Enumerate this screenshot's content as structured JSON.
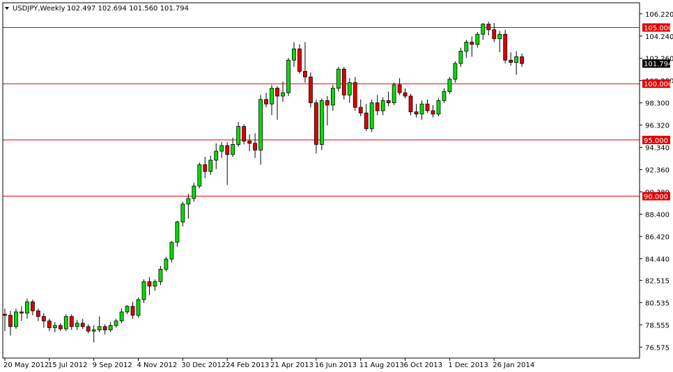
{
  "header": {
    "symbol": "USDJPY,Weekly",
    "ohlc": "102.497 102.694 101.560 101.794"
  },
  "chart_data": {
    "type": "candlestick",
    "title": "USDJPY,Weekly",
    "ylim": [
      75.6,
      107.2
    ],
    "y_ticks": [
      "106.220",
      "104.240",
      "102.260",
      "100.280",
      "98.300",
      "96.320",
      "94.340",
      "92.360",
      "90.380",
      "88.400",
      "86.420",
      "84.440",
      "82.515",
      "80.535",
      "78.555",
      "76.575"
    ],
    "x_ticks": [
      {
        "label": "20 May 2012",
        "index": 0
      },
      {
        "label": "15 Jul 2012",
        "index": 8
      },
      {
        "label": "9 Sep 2012",
        "index": 16
      },
      {
        "label": "4 Nov 2012",
        "index": 24
      },
      {
        "label": "30 Dec 2012",
        "index": 32
      },
      {
        "label": "24 Feb 2013",
        "index": 40
      },
      {
        "label": "21 Apr 2013",
        "index": 48
      },
      {
        "label": "16 Jun 2013",
        "index": 56
      },
      {
        "label": "11 Aug 2013",
        "index": 64
      },
      {
        "label": "6 Oct 2013",
        "index": 72
      },
      {
        "label": "1 Dec 2013",
        "index": 80
      },
      {
        "label": "26 Jan 2014",
        "index": 88
      }
    ],
    "levels": [
      {
        "label": "105.000",
        "value": 105.0
      },
      {
        "label": "100.000",
        "value": 100.0
      },
      {
        "label": "95.000",
        "value": 95.0
      },
      {
        "label": "90.000",
        "value": 90.0
      }
    ],
    "current_price": {
      "label": "101.794",
      "value": 101.794
    },
    "colors": {
      "bull": "#00e000",
      "bear": "#e00000",
      "level": "#e00000",
      "grid": "#000000",
      "current_bg": "#000000"
    },
    "candles": [
      [
        79.5,
        80.0,
        78.0,
        79.4
      ],
      [
        79.4,
        79.8,
        77.6,
        78.4
      ],
      [
        78.4,
        80.0,
        78.2,
        79.7
      ],
      [
        79.7,
        80.2,
        78.9,
        79.6
      ],
      [
        79.6,
        80.9,
        79.1,
        80.6
      ],
      [
        80.6,
        80.8,
        79.4,
        79.8
      ],
      [
        79.8,
        80.0,
        78.9,
        79.3
      ],
      [
        79.3,
        79.6,
        78.3,
        78.9
      ],
      [
        78.9,
        79.1,
        78.0,
        78.3
      ],
      [
        78.3,
        78.8,
        77.9,
        78.5
      ],
      [
        78.5,
        78.7,
        78.0,
        78.2
      ],
      [
        78.2,
        79.5,
        78.0,
        79.3
      ],
      [
        79.3,
        79.5,
        78.1,
        78.4
      ],
      [
        78.4,
        79.0,
        78.1,
        78.7
      ],
      [
        78.7,
        79.1,
        78.2,
        78.4
      ],
      [
        78.4,
        78.6,
        77.8,
        78.0
      ],
      [
        78.0,
        78.5,
        77.0,
        78.1
      ],
      [
        78.1,
        79.3,
        77.9,
        78.4
      ],
      [
        78.4,
        78.6,
        77.7,
        78.1
      ],
      [
        78.1,
        78.8,
        77.9,
        78.5
      ],
      [
        78.5,
        79.1,
        78.3,
        78.9
      ],
      [
        78.9,
        80.0,
        78.7,
        79.7
      ],
      [
        79.7,
        80.3,
        79.5,
        80.2
      ],
      [
        80.2,
        80.6,
        79.1,
        79.4
      ],
      [
        79.4,
        81.0,
        79.2,
        80.8
      ],
      [
        80.8,
        82.6,
        80.5,
        82.4
      ],
      [
        82.4,
        82.8,
        81.2,
        82.0
      ],
      [
        82.0,
        82.6,
        81.6,
        82.4
      ],
      [
        82.4,
        83.8,
        82.1,
        83.5
      ],
      [
        83.5,
        84.6,
        83.3,
        84.4
      ],
      [
        84.4,
        86.0,
        84.1,
        85.9
      ],
      [
        85.9,
        87.8,
        85.5,
        87.7
      ],
      [
        87.7,
        89.5,
        87.3,
        89.3
      ],
      [
        89.3,
        90.2,
        88.0,
        89.8
      ],
      [
        89.8,
        91.2,
        89.5,
        90.9
      ],
      [
        90.9,
        93.0,
        90.7,
        92.8
      ],
      [
        92.8,
        93.5,
        91.6,
        92.2
      ],
      [
        92.2,
        93.6,
        91.9,
        93.2
      ],
      [
        93.2,
        94.7,
        92.4,
        94.0
      ],
      [
        94.0,
        94.8,
        93.4,
        94.5
      ],
      [
        94.5,
        94.8,
        91.0,
        93.7
      ],
      [
        93.7,
        95.2,
        93.5,
        94.6
      ],
      [
        94.6,
        96.6,
        94.4,
        96.2
      ],
      [
        96.2,
        96.4,
        94.6,
        94.9
      ],
      [
        94.9,
        95.5,
        94.0,
        94.7
      ],
      [
        94.7,
        95.6,
        93.4,
        94.1
      ],
      [
        94.1,
        99.0,
        92.8,
        98.6
      ],
      [
        98.6,
        99.2,
        97.9,
        98.2
      ],
      [
        98.2,
        99.9,
        97.2,
        99.6
      ],
      [
        99.6,
        99.8,
        96.8,
        98.9
      ],
      [
        98.9,
        100.2,
        98.4,
        99.2
      ],
      [
        99.2,
        102.3,
        98.9,
        102.1
      ],
      [
        102.1,
        103.7,
        101.5,
        103.1
      ],
      [
        103.1,
        103.5,
        100.9,
        101.1
      ],
      [
        101.1,
        103.7,
        100.1,
        100.6
      ],
      [
        100.6,
        101.0,
        97.9,
        98.3
      ],
      [
        98.3,
        98.6,
        93.8,
        94.6
      ],
      [
        94.6,
        98.7,
        94.1,
        98.5
      ],
      [
        98.5,
        98.9,
        96.3,
        98.1
      ],
      [
        98.1,
        99.9,
        97.6,
        99.6
      ],
      [
        99.6,
        101.5,
        99.3,
        101.3
      ],
      [
        101.3,
        101.5,
        98.6,
        99.0
      ],
      [
        99.0,
        100.5,
        98.3,
        100.1
      ],
      [
        100.1,
        100.6,
        97.6,
        97.9
      ],
      [
        97.9,
        98.6,
        97.1,
        97.4
      ],
      [
        97.4,
        98.2,
        95.8,
        96.0
      ],
      [
        96.0,
        98.6,
        95.7,
        98.3
      ],
      [
        98.3,
        99.0,
        97.2,
        97.6
      ],
      [
        97.6,
        98.8,
        97.2,
        98.5
      ],
      [
        98.5,
        99.3,
        98.0,
        98.3
      ],
      [
        98.3,
        100.1,
        98.1,
        99.9
      ],
      [
        99.9,
        100.5,
        99.0,
        99.2
      ],
      [
        99.2,
        99.6,
        98.7,
        98.9
      ],
      [
        98.9,
        99.1,
        97.2,
        97.5
      ],
      [
        97.5,
        98.2,
        97.0,
        97.3
      ],
      [
        97.3,
        98.5,
        96.8,
        98.2
      ],
      [
        98.2,
        98.6,
        97.4,
        97.6
      ],
      [
        97.6,
        98.1,
        97.0,
        97.3
      ],
      [
        97.3,
        98.7,
        97.1,
        98.5
      ],
      [
        98.5,
        99.6,
        98.3,
        99.3
      ],
      [
        99.3,
        100.6,
        99.1,
        100.4
      ],
      [
        100.4,
        102.0,
        100.1,
        101.8
      ],
      [
        101.8,
        103.2,
        101.5,
        102.9
      ],
      [
        102.9,
        103.9,
        102.3,
        103.7
      ],
      [
        103.7,
        104.2,
        102.4,
        103.5
      ],
      [
        103.5,
        104.6,
        103.2,
        104.4
      ],
      [
        104.4,
        105.4,
        103.9,
        105.3
      ],
      [
        105.3,
        105.5,
        104.3,
        104.8
      ],
      [
        104.8,
        105.4,
        103.7,
        104.0
      ],
      [
        104.0,
        104.7,
        102.8,
        104.4
      ],
      [
        104.4,
        104.8,
        101.8,
        102.1
      ],
      [
        102.1,
        102.8,
        101.6,
        101.9
      ],
      [
        101.9,
        102.9,
        100.8,
        102.4
      ],
      [
        102.4,
        102.7,
        101.5,
        101.8
      ]
    ]
  }
}
